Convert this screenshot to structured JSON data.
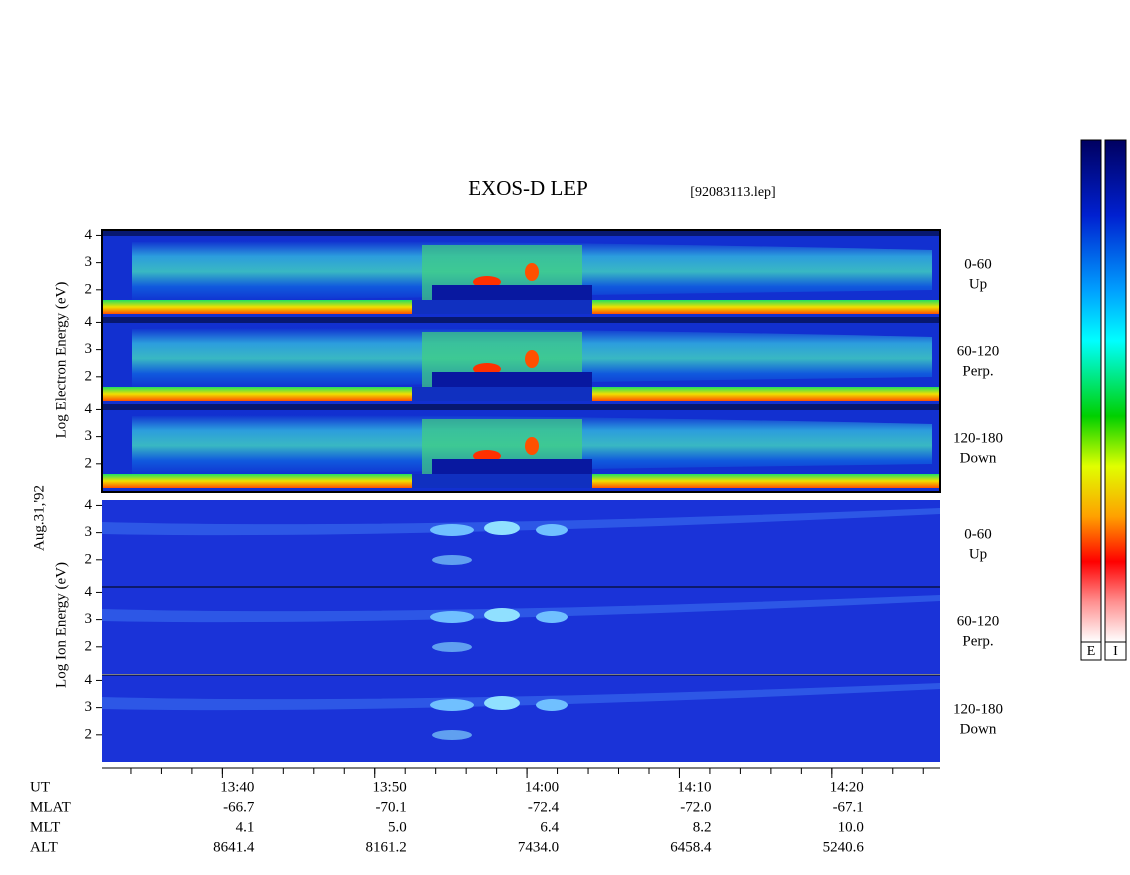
{
  "title": "EXOS-D LEP",
  "file": "[92083113.lep]",
  "date": "Aug.31,'92",
  "electron_label": "Log  Electron  Energy (eV)",
  "ion_label": "Log  Ion  Energy (eV)",
  "panels": [
    {
      "angle": "0-60",
      "dir": "Up"
    },
    {
      "angle": "60-120",
      "dir": "Perp."
    },
    {
      "angle": "120-180",
      "dir": "Down"
    }
  ],
  "ylim": [
    1,
    4.2
  ],
  "yticks": [
    2,
    3,
    4
  ],
  "xlim": [
    812.1,
    867.1
  ],
  "xticks": [
    {
      "value": 820,
      "label": "13:40"
    },
    {
      "value": 830,
      "label": "13:50"
    },
    {
      "value": 840,
      "label": "14:00"
    },
    {
      "value": 850,
      "label": "14:10"
    },
    {
      "value": 860,
      "label": "14:20"
    }
  ],
  "xminorticks": [
    814,
    816,
    818,
    820,
    822,
    824,
    826,
    828,
    830,
    832,
    834,
    836,
    838,
    840,
    842,
    844,
    846,
    848,
    850,
    852,
    854,
    856,
    858,
    860,
    862,
    864,
    866
  ],
  "row_names": [
    "UT",
    "MLAT",
    "MLT",
    "ALT"
  ],
  "rows": [
    [
      "-66.7",
      "-70.1",
      "-72.4",
      "-72.0",
      "-67.1"
    ],
    [
      "4.1",
      "5.0",
      "6.4",
      "8.2",
      "10.0"
    ],
    [
      "8641.4",
      "8161.2",
      "7434.0",
      "6458.4",
      "5240.6"
    ]
  ],
  "colorbars": [
    "E",
    "I"
  ]
}
